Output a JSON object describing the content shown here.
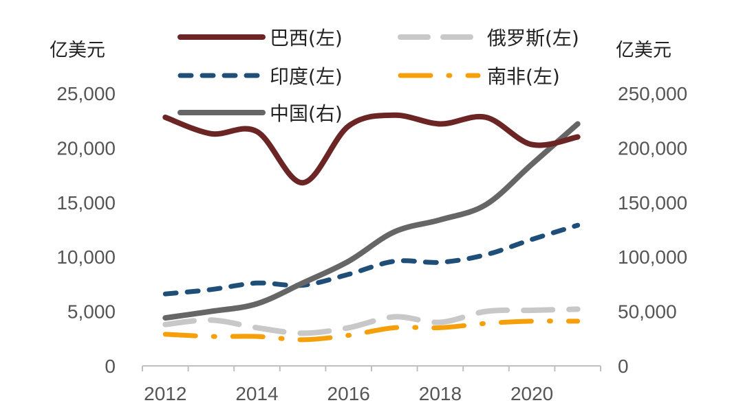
{
  "chart_data": {
    "type": "line",
    "title": "",
    "xlabel": "",
    "left_unit": "亿美元",
    "right_unit": "亿美元",
    "x": [
      2012,
      2013,
      2014,
      2015,
      2016,
      2017,
      2018,
      2019,
      2020,
      2021
    ],
    "x_tick_labels": [
      "2012",
      "2014",
      "2016",
      "2018",
      "2020"
    ],
    "ylim_left": [
      0,
      25000
    ],
    "ylim_right": [
      0,
      250000
    ],
    "y_left_ticks": [
      "0",
      "5,000",
      "10,000",
      "15,000",
      "20,000",
      "25,000"
    ],
    "y_right_ticks": [
      "0",
      "50,000",
      "100,000",
      "150,000",
      "200,000",
      "250,000"
    ],
    "grid": false,
    "legend_position": "top",
    "series": [
      {
        "name": "巴西(左)",
        "axis": "left",
        "color": "#6b2525",
        "style": "solid",
        "values": [
          22800,
          21300,
          21500,
          16800,
          22000,
          23000,
          22200,
          22800,
          20300,
          21000
        ]
      },
      {
        "name": "俄罗斯(左)",
        "axis": "left",
        "color": "#c8c8c8",
        "style": "longdash",
        "values": [
          3800,
          4200,
          3500,
          3000,
          3500,
          4500,
          4000,
          5000,
          5100,
          5200
        ]
      },
      {
        "name": "印度(左)",
        "axis": "left",
        "color": "#1f4e79",
        "style": "dash",
        "values": [
          6600,
          7000,
          7600,
          7400,
          8400,
          9600,
          9500,
          10200,
          11600,
          12900
        ]
      },
      {
        "name": "南非(左)",
        "axis": "left",
        "color": "#f5a00a",
        "style": "dashdot",
        "values": [
          2900,
          2700,
          2700,
          2400,
          2800,
          3500,
          3500,
          3900,
          4100,
          4100
        ]
      },
      {
        "name": "中国(右)",
        "axis": "right",
        "color": "#666666",
        "style": "solid",
        "values": [
          44000,
          50000,
          57000,
          76000,
          96000,
          123000,
          134000,
          148000,
          185000,
          222000
        ]
      }
    ]
  }
}
